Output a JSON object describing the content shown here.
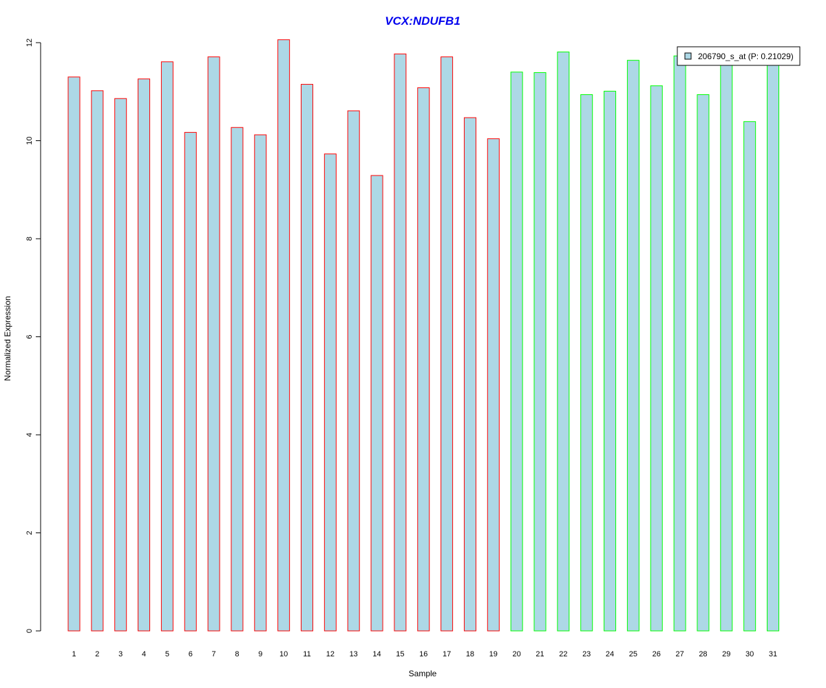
{
  "chart_data": {
    "type": "bar",
    "title": "VCX:NDUFB1",
    "xlabel": "Sample",
    "ylabel": "Normalized Expression",
    "ylim": [
      0,
      12
    ],
    "yticks": [
      0,
      2,
      4,
      6,
      8,
      10,
      12
    ],
    "grid": false,
    "legend_position": "top-right",
    "categories": [
      "1",
      "2",
      "3",
      "4",
      "5",
      "6",
      "7",
      "8",
      "9",
      "10",
      "11",
      "12",
      "13",
      "14",
      "15",
      "16",
      "17",
      "18",
      "19",
      "20",
      "21",
      "22",
      "23",
      "24",
      "25",
      "26",
      "27",
      "28",
      "29",
      "30",
      "31"
    ],
    "series": [
      {
        "name": "206790_s_at (P: 0.21029)",
        "fill_color": "#add8e6",
        "values": [
          11.3,
          11.02,
          10.86,
          11.26,
          11.61,
          10.17,
          11.71,
          10.27,
          10.12,
          12.06,
          11.15,
          9.73,
          10.61,
          9.29,
          11.77,
          11.08,
          11.71,
          10.47,
          10.04,
          11.4,
          11.39,
          11.81,
          10.94,
          11.01,
          11.64,
          11.12,
          11.73,
          10.94,
          11.64,
          10.39,
          11.65
        ]
      }
    ],
    "group_border_colors": [
      "#ff0000",
      "#ff0000",
      "#ff0000",
      "#ff0000",
      "#ff0000",
      "#ff0000",
      "#ff0000",
      "#ff0000",
      "#ff0000",
      "#ff0000",
      "#ff0000",
      "#ff0000",
      "#ff0000",
      "#ff0000",
      "#ff0000",
      "#ff0000",
      "#ff0000",
      "#ff0000",
      "#ff0000",
      "#00ff00",
      "#00ff00",
      "#00ff00",
      "#00ff00",
      "#00ff00",
      "#00ff00",
      "#00ff00",
      "#00ff00",
      "#00ff00",
      "#00ff00",
      "#00ff00",
      "#00ff00"
    ]
  },
  "colors": {
    "title": "#0000ee",
    "axis": "#000000",
    "legend_border": "#000000"
  }
}
